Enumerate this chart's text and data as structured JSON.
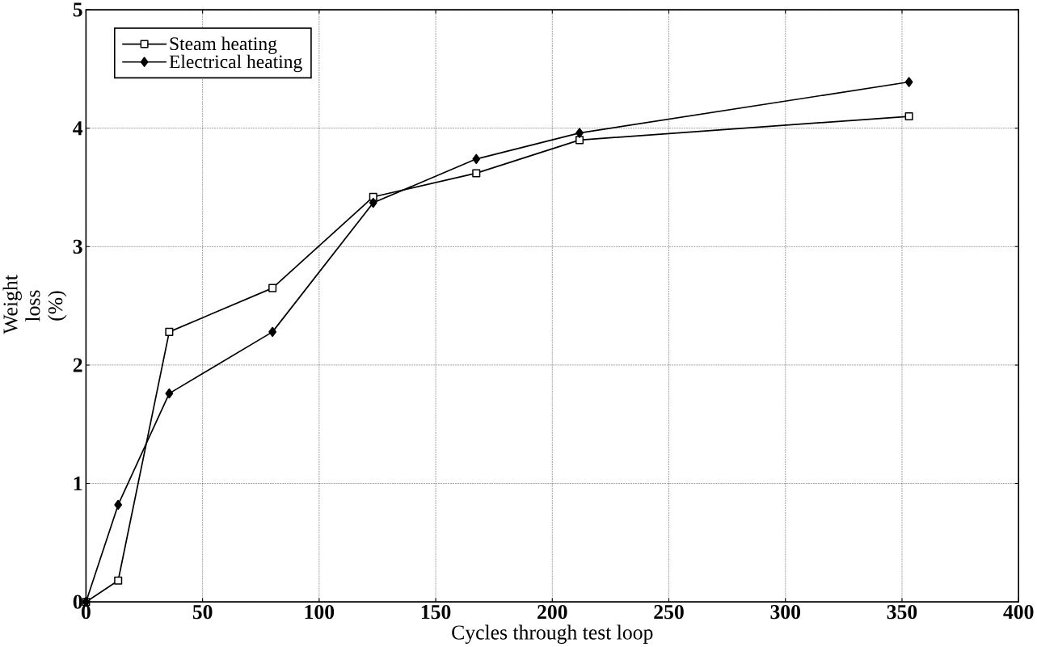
{
  "chart_data": {
    "type": "line",
    "xlabel": "Cycles through test loop",
    "ylabel": "Weight loss (%)",
    "xlim": [
      0,
      400
    ],
    "ylim": [
      0,
      5
    ],
    "xticks": [
      0,
      50,
      100,
      150,
      200,
      250,
      300,
      350,
      400
    ],
    "yticks": [
      0,
      1,
      2,
      3,
      4,
      5
    ],
    "grid": true,
    "legend": "top left",
    "series": [
      {
        "name": "Steam heating",
        "color": "#000000",
        "marker": "square",
        "x": [
          0,
          13.8,
          35.7,
          80,
          123.2,
          167.4,
          211.7,
          353
        ],
        "values": [
          0,
          0.18,
          2.28,
          2.65,
          3.42,
          3.62,
          3.9,
          4.1
        ]
      },
      {
        "name": "Electrical heating",
        "color": "#000000",
        "marker": "diamond",
        "x": [
          0,
          13.8,
          35.7,
          80,
          123.2,
          167.4,
          211.7,
          353
        ],
        "values": [
          0,
          0.82,
          1.76,
          2.28,
          3.37,
          3.74,
          3.96,
          4.39
        ]
      }
    ]
  }
}
